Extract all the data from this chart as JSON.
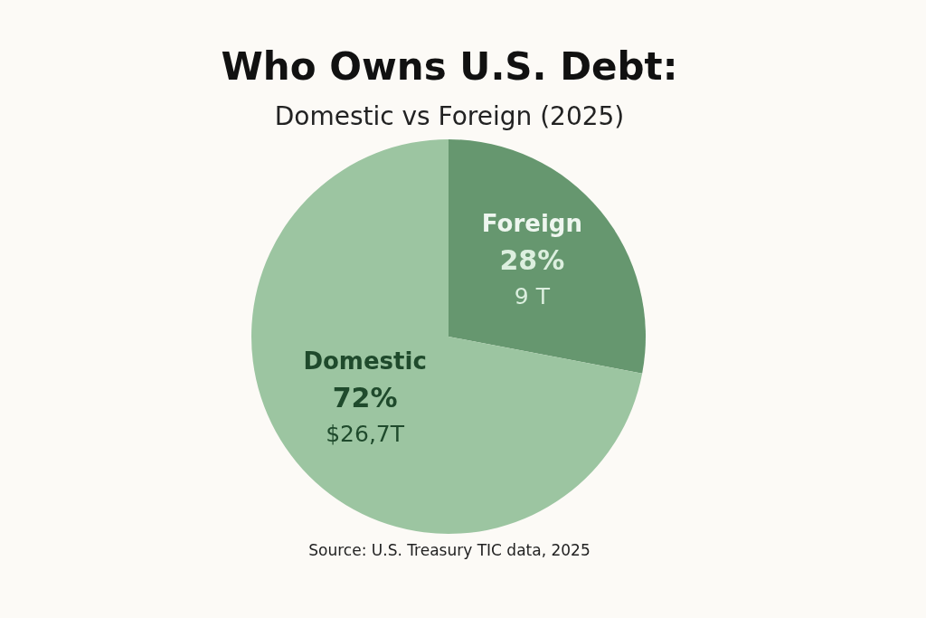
{
  "chart_data": {
    "type": "pie",
    "title": "Who Owns U.S. Debt:",
    "subtitle": "Domestic vs Foreign (2025)",
    "categories": [
      "Foreign",
      "Domestic"
    ],
    "values": [
      28,
      72
    ],
    "colors": [
      "#66976f",
      "#9cc5a1"
    ],
    "value_labels": [
      "28%",
      "72%"
    ],
    "annotations": [
      {
        "text": "9 T",
        "x": "Foreign"
      },
      {
        "text": "$26,7T",
        "x": "Domestic"
      },
      "Source: U.S. Treasury TIC data, 2025"
    ]
  }
}
